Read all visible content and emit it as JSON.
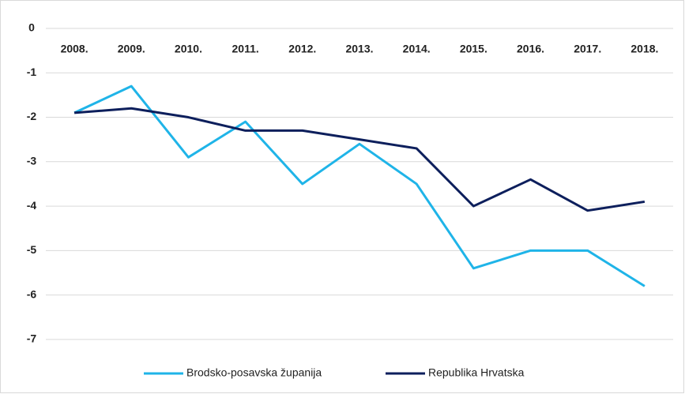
{
  "chart_data": {
    "type": "line",
    "categories": [
      "2008.",
      "2009.",
      "2010.",
      "2011.",
      "2012.",
      "2013.",
      "2014.",
      "2015.",
      "2016.",
      "2017.",
      "2018."
    ],
    "series": [
      {
        "name": "Brodsko-posavska županija",
        "color": "#1fb4e8",
        "values": [
          -1.9,
          -1.3,
          -2.9,
          -2.1,
          -3.5,
          -2.6,
          -3.5,
          -5.4,
          -5.0,
          -5.0,
          -5.8
        ]
      },
      {
        "name": "Republika Hrvatska",
        "color": "#0d1f5c",
        "values": [
          -1.9,
          -1.8,
          -2.0,
          -2.3,
          -2.3,
          -2.5,
          -2.7,
          -4.0,
          -3.4,
          -4.1,
          -3.9
        ]
      }
    ],
    "ylim": [
      -7.5,
      0
    ],
    "yticks": [
      0,
      -1,
      -2,
      -3,
      -4,
      -5,
      -6,
      -7
    ],
    "grid": true,
    "legend": "bottom"
  }
}
